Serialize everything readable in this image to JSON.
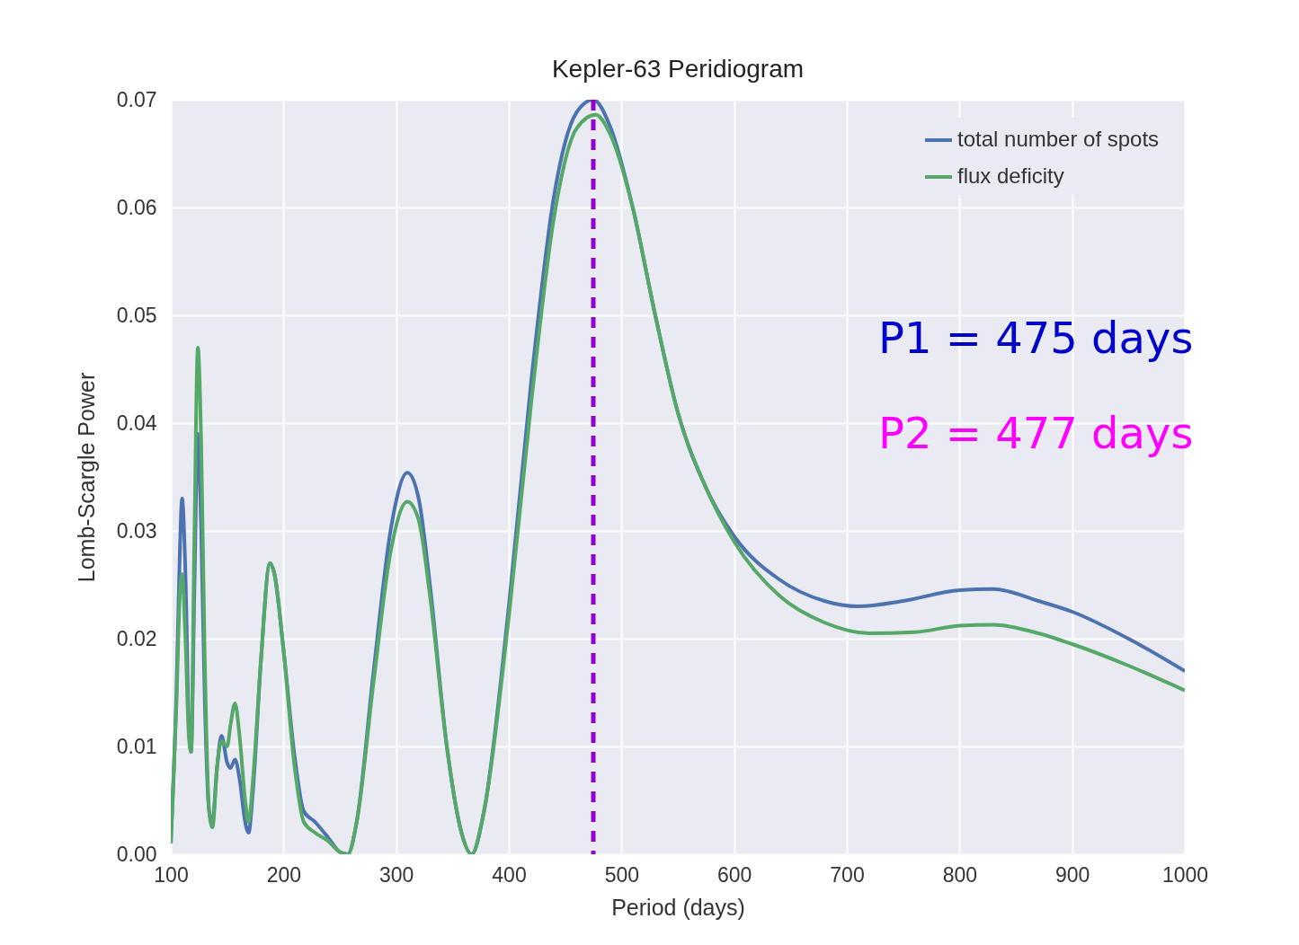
{
  "chart_data": {
    "type": "line",
    "title": "Kepler-63 Peridiogram",
    "xlabel": "Period (days)",
    "ylabel": "Lomb-Scargle Power",
    "xlim": [
      100,
      1000
    ],
    "xticks": [
      100,
      200,
      300,
      400,
      500,
      600,
      700,
      800,
      900,
      1000
    ],
    "ylim": [
      0,
      0.07
    ],
    "yticks": [
      {
        "value": 0,
        "label": "0.00"
      },
      {
        "value": 0.01,
        "label": "0.01"
      },
      {
        "value": 0.02,
        "label": "0.02"
      },
      {
        "value": 0.03,
        "label": "0.03"
      },
      {
        "value": 0.04,
        "label": "0.04"
      },
      {
        "value": 0.05,
        "label": "0.05"
      },
      {
        "value": 0.06,
        "label": "0.06"
      },
      {
        "value": 0.07,
        "label": "0.07"
      }
    ],
    "grid": true,
    "legend": "top right",
    "marker": "none",
    "line_style": "solid",
    "series": [
      {
        "name": "total number of spots",
        "color": "#4c72b0",
        "x": [
          100,
          105,
          108,
          110,
          113,
          116,
          118,
          121,
          124,
          127,
          130,
          134,
          137,
          141,
          145,
          150,
          153,
          157,
          161,
          166,
          169,
          173,
          180,
          188,
          192,
          200,
          210,
          218,
          228,
          240,
          250,
          257,
          265,
          280,
          295,
          310,
          320,
          330,
          345,
          358,
          367,
          378,
          400,
          420,
          440,
          460,
          475,
          490,
          510,
          530,
          550,
          575,
          600,
          640,
          680,
          710,
          750,
          800,
          830,
          870,
          900,
          950,
          1000
        ],
        "values": [
          0.001,
          0.015,
          0.028,
          0.033,
          0.026,
          0.012,
          0.0095,
          0.025,
          0.039,
          0.03,
          0.015,
          0.004,
          0.003,
          0.008,
          0.011,
          0.0085,
          0.008,
          0.0088,
          0.007,
          0.003,
          0.002,
          0.006,
          0.018,
          0.027,
          0.026,
          0.019,
          0.009,
          0.004,
          0.003,
          0.0015,
          0.0002,
          0,
          0.003,
          0.017,
          0.03,
          0.0354,
          0.033,
          0.025,
          0.01,
          0.002,
          0,
          0.004,
          0.023,
          0.044,
          0.061,
          0.0688,
          0.07,
          0.0675,
          0.06,
          0.05,
          0.041,
          0.034,
          0.0295,
          0.0255,
          0.0235,
          0.023,
          0.0235,
          0.0245,
          0.0246,
          0.0235,
          0.0225,
          0.02,
          0.017
        ]
      },
      {
        "name": "flux deficity",
        "color": "#55a868",
        "x": [
          100,
          105,
          108,
          110,
          113,
          116,
          118,
          121,
          124,
          127,
          130,
          134,
          137,
          141,
          145,
          150,
          153,
          157,
          161,
          166,
          169,
          173,
          180,
          188,
          192,
          200,
          210,
          218,
          228,
          240,
          250,
          257,
          265,
          280,
          295,
          310,
          320,
          330,
          345,
          358,
          367,
          378,
          400,
          420,
          440,
          460,
          477,
          490,
          510,
          530,
          550,
          575,
          600,
          640,
          680,
          720,
          760,
          800,
          830,
          870,
          900,
          950,
          1000
        ],
        "values": [
          0.001,
          0.014,
          0.024,
          0.026,
          0.02,
          0.011,
          0.0095,
          0.03,
          0.047,
          0.038,
          0.019,
          0.004,
          0.0025,
          0.008,
          0.0105,
          0.01,
          0.012,
          0.014,
          0.011,
          0.005,
          0.003,
          0.007,
          0.018,
          0.027,
          0.026,
          0.019,
          0.008,
          0.003,
          0.002,
          0.0012,
          0.0002,
          0,
          0.003,
          0.016,
          0.028,
          0.0327,
          0.031,
          0.024,
          0.01,
          0.002,
          0,
          0.004,
          0.022,
          0.042,
          0.059,
          0.0673,
          0.0686,
          0.0668,
          0.06,
          0.05,
          0.041,
          0.034,
          0.029,
          0.024,
          0.0215,
          0.0205,
          0.0206,
          0.0212,
          0.0213,
          0.0205,
          0.0195,
          0.0175,
          0.0152
        ]
      }
    ],
    "ref_lines": [
      {
        "axis": "x",
        "value": 475,
        "color": "#9400d3",
        "line_style": "dashed"
      }
    ],
    "annotations": [
      "P1 = 475 days",
      "P2 = 477 days"
    ]
  }
}
